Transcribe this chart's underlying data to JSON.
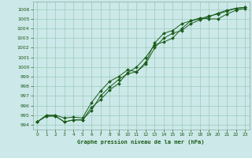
{
  "title": "Graphe pression niveau de la mer (hPa)",
  "background_color": "#cce8e8",
  "grid_color": "#99ccbb",
  "line_color": "#1a5c1a",
  "xlim": [
    -0.5,
    23.5
  ],
  "ylim": [
    993.5,
    1006.8
  ],
  "yticks": [
    994,
    995,
    996,
    997,
    998,
    999,
    1000,
    1001,
    1002,
    1003,
    1004,
    1005,
    1006
  ],
  "xticks": [
    0,
    1,
    2,
    3,
    4,
    5,
    6,
    7,
    8,
    9,
    10,
    11,
    12,
    13,
    14,
    15,
    16,
    17,
    18,
    19,
    20,
    21,
    22,
    23
  ],
  "series1": [
    994.3,
    995.0,
    995.0,
    994.7,
    994.8,
    994.7,
    996.3,
    997.5,
    998.5,
    999.0,
    999.7,
    999.5,
    1000.5,
    1002.5,
    1003.5,
    1003.8,
    1004.5,
    1004.8,
    1005.0,
    1005.3,
    1005.5,
    1005.8,
    1006.1,
    1006.2
  ],
  "series2": [
    994.3,
    994.9,
    994.9,
    994.3,
    994.5,
    994.5,
    995.8,
    996.6,
    997.6,
    998.3,
    999.4,
    1000.0,
    1001.0,
    1002.3,
    1002.6,
    1003.0,
    1004.0,
    1004.8,
    1005.1,
    1005.0,
    1005.0,
    1005.5,
    1005.9,
    1006.1
  ],
  "series3": [
    994.3,
    994.9,
    994.9,
    994.3,
    994.5,
    994.5,
    995.5,
    997.0,
    997.9,
    998.7,
    999.3,
    999.5,
    1000.3,
    1002.0,
    1003.0,
    1003.5,
    1003.8,
    1004.5,
    1004.9,
    1005.2,
    1005.6,
    1005.9,
    1006.1,
    1006.2
  ]
}
